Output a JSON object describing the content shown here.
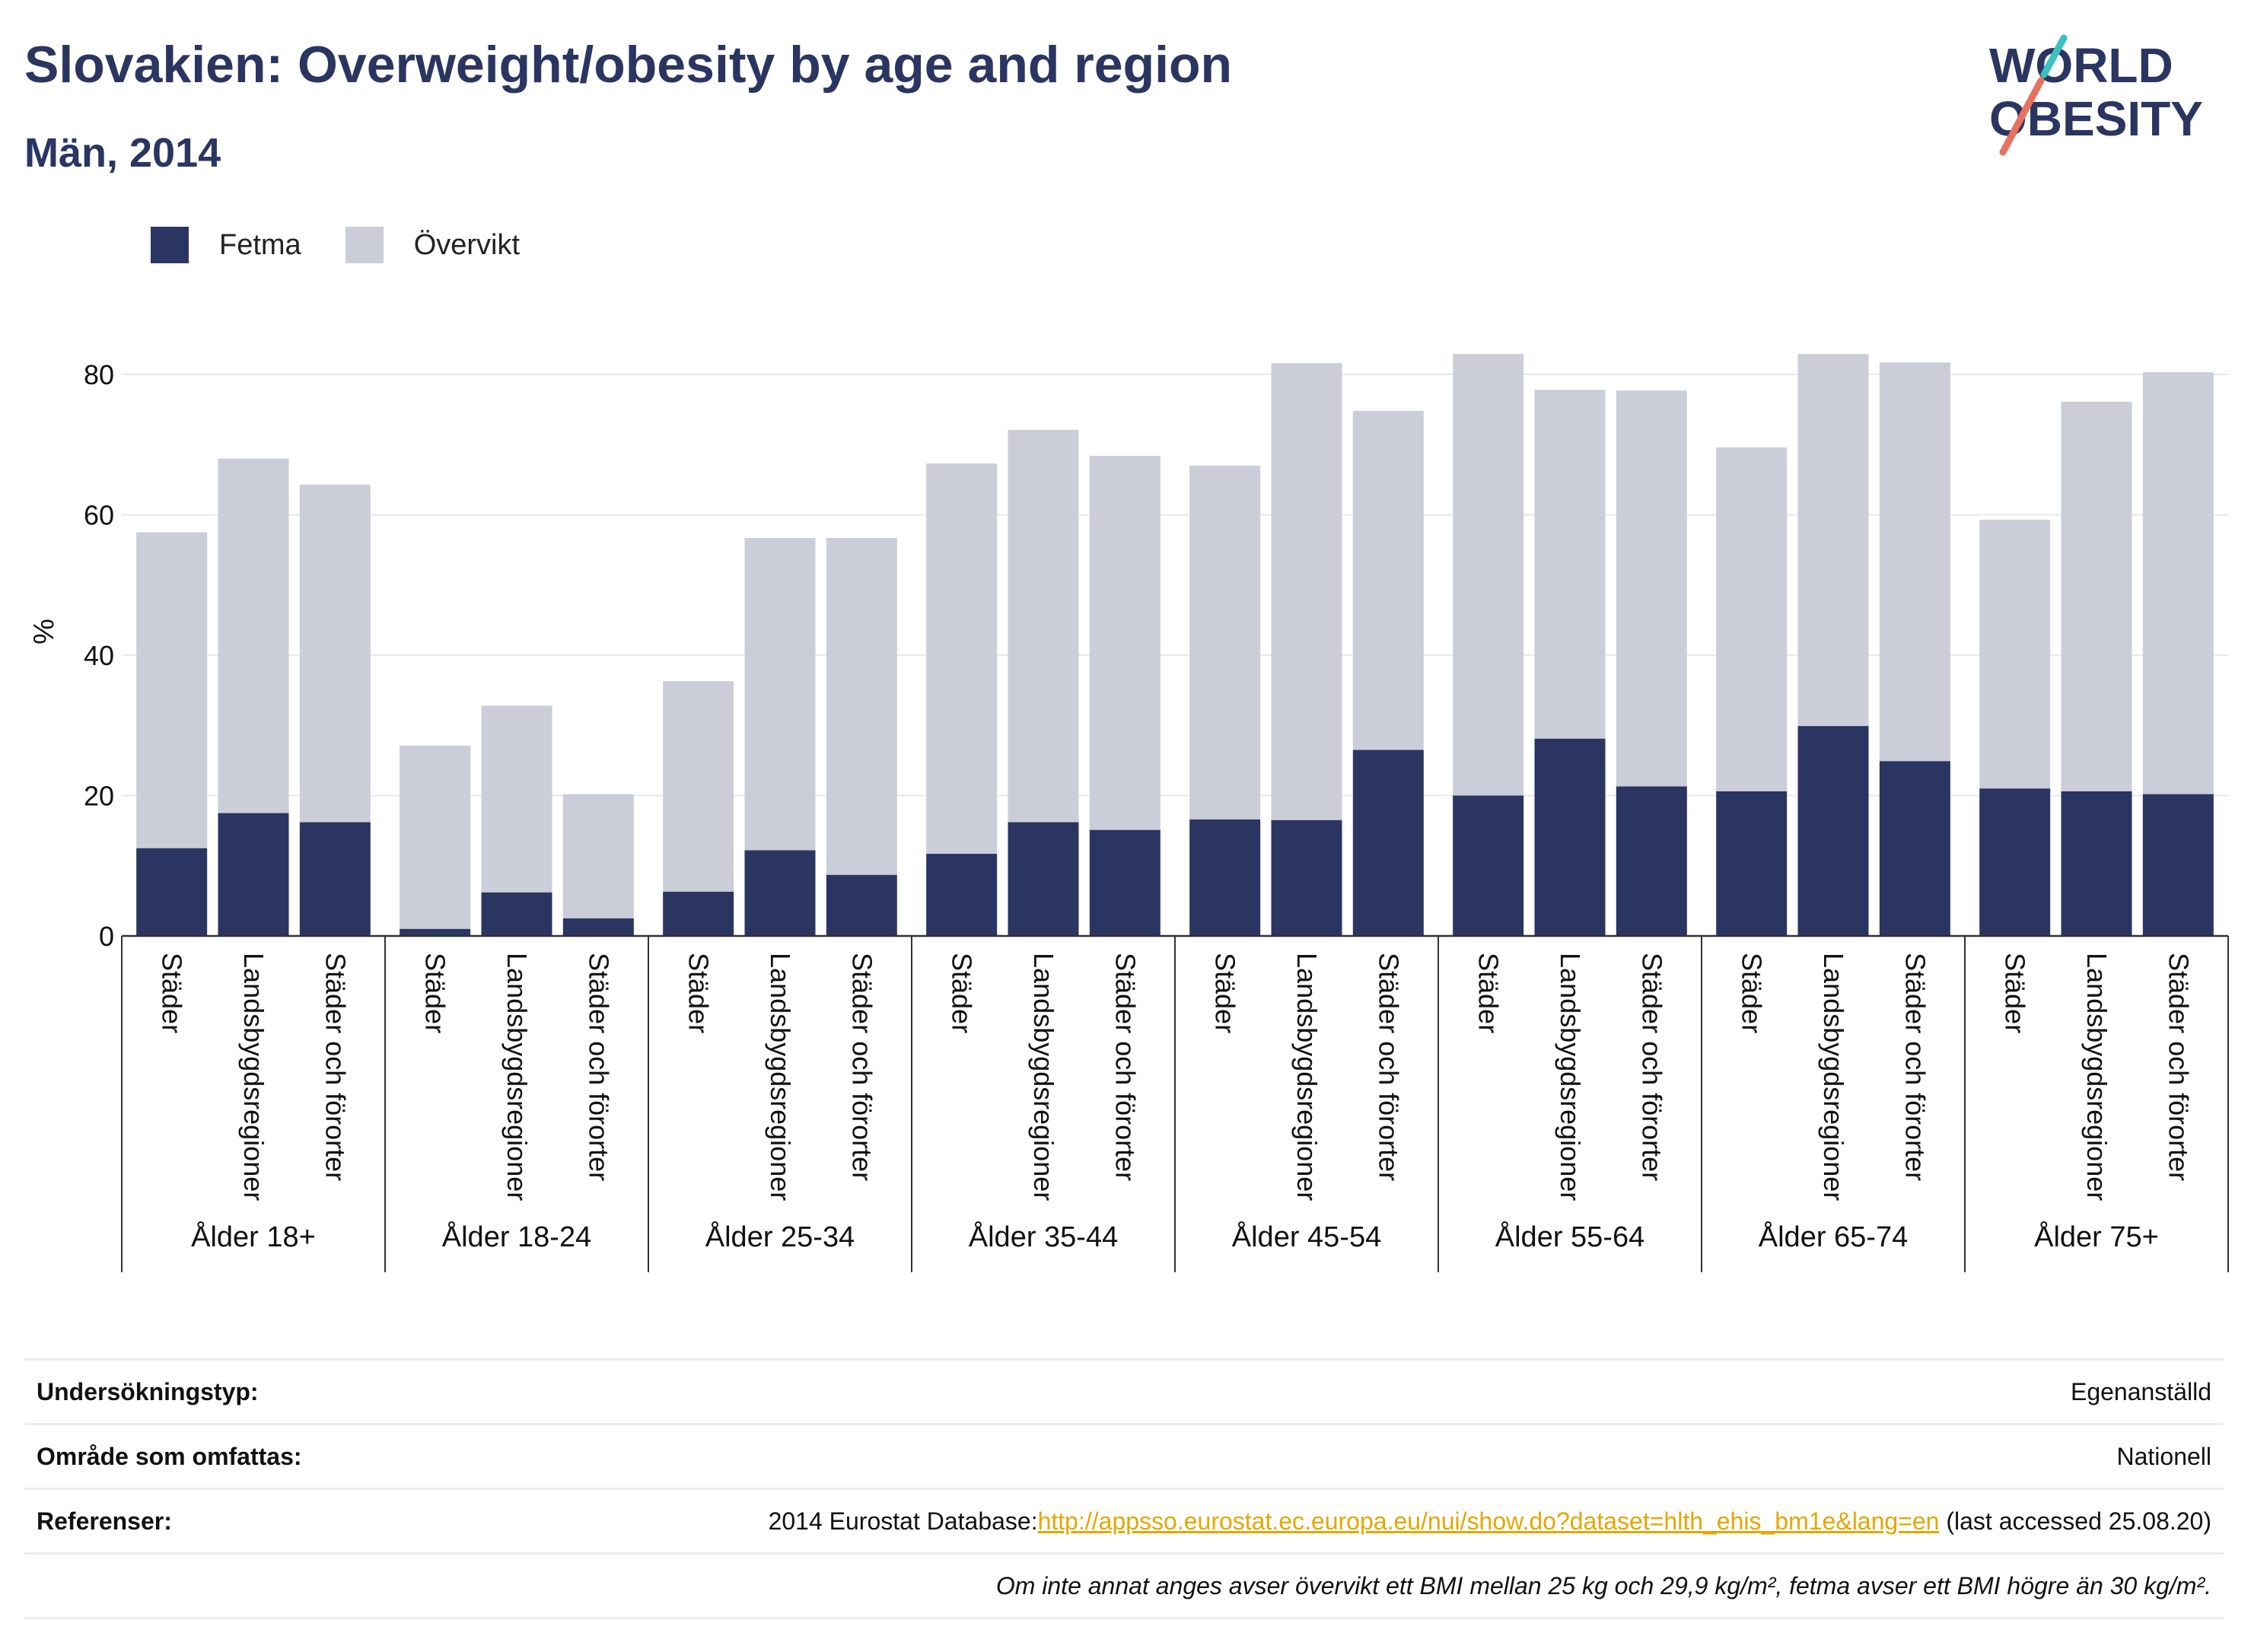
{
  "header": {
    "title": "Slovakien: Overweight/obesity by age and region",
    "subtitle": "Män, 2014"
  },
  "logo": {
    "line1": "WORLD",
    "line2": "OBESITY"
  },
  "colors": {
    "fetma": "#2a3561",
    "overvikt": "#cbcdd8",
    "title": "#2a3561",
    "link": "#e6a600"
  },
  "legend": [
    {
      "label": "Fetma",
      "color": "#2a3561"
    },
    {
      "label": "Övervikt",
      "color": "#cbcdd8"
    }
  ],
  "chart_data": {
    "type": "bar",
    "stacked": true,
    "ylabel": "%",
    "ylim": [
      0,
      80
    ],
    "yticks": [
      0,
      20,
      40,
      60,
      80
    ],
    "grid": true,
    "subcategories": [
      "Städer",
      "Landsbygdsregioner",
      "Städer och förorter"
    ],
    "groups": [
      "Ålder 18+",
      "Ålder 18-24",
      "Ålder 25-34",
      "Ålder 35-44",
      "Ålder 45-54",
      "Ålder 55-64",
      "Ålder 65-74",
      "Ålder 75+"
    ],
    "series": [
      {
        "name": "Fetma",
        "values": [
          12.5,
          17.5,
          16.2,
          1.0,
          6.2,
          2.5,
          6.3,
          12.2,
          8.7,
          11.7,
          16.2,
          15.1,
          16.6,
          16.5,
          26.5,
          20.0,
          28.1,
          21.3,
          20.6,
          29.9,
          24.9,
          21.0,
          20.6,
          20.2
        ]
      },
      {
        "name": "Övervikt",
        "values": [
          45.0,
          50.5,
          48.1,
          26.1,
          26.6,
          17.7,
          30.0,
          44.5,
          48.0,
          55.6,
          55.9,
          53.3,
          50.4,
          65.1,
          48.3,
          62.9,
          49.7,
          56.4,
          49.0,
          53.0,
          56.8,
          38.3,
          55.5,
          60.1
        ]
      }
    ]
  },
  "info": [
    {
      "label": "Undersökningstyp:",
      "value": "Egenanställd"
    },
    {
      "label": "Område som omfattas:",
      "value": "Nationell"
    },
    {
      "label": "Referenser:",
      "prefix": "2014 Eurostat Database:",
      "link": "http://appsso.eurostat.ec.europa.eu/nui/show.do?dataset=hlth_ehis_bm1e&lang=en",
      "suffix": " (last accessed 25.08.20)"
    }
  ],
  "note": "Om inte annat anges avser övervikt ett BMI mellan 25 kg och 29,9 kg/m², fetma avser ett BMI högre än 30 kg/m²."
}
